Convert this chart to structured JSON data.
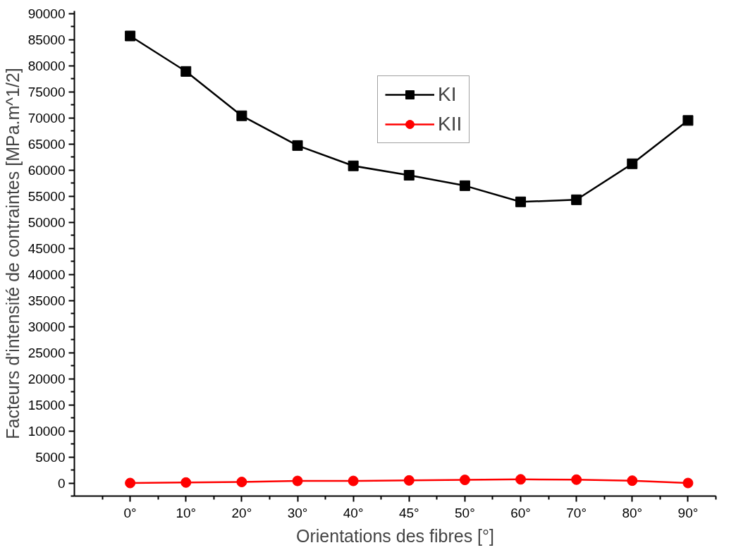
{
  "chart_data": {
    "type": "line",
    "xlabel": "Orientations des fibres [°]",
    "ylabel": "Facteurs d'intensité de contraintes [MPa.m^1/2]",
    "categories": [
      "0°",
      "10°",
      "20°",
      "30°",
      "40°",
      "45°",
      "50°",
      "60°",
      "70°",
      "80°",
      "90°"
    ],
    "series": [
      {
        "name": "KI",
        "color": "#000000",
        "marker": "square",
        "values": [
          85700,
          78900,
          70400,
          64700,
          60800,
          59000,
          57000,
          53900,
          54300,
          61200,
          69500
        ]
      },
      {
        "name": "KII",
        "color": "#ff0000",
        "marker": "circle",
        "values": [
          0,
          100,
          200,
          400,
          400,
          500,
          600,
          700,
          650,
          450,
          0
        ]
      }
    ],
    "ylim": [
      -2500,
      90500
    ],
    "yticks": [
      0,
      5000,
      10000,
      15000,
      20000,
      25000,
      30000,
      35000,
      40000,
      45000,
      50000,
      55000,
      60000,
      65000,
      70000,
      75000,
      80000,
      85000,
      90000
    ],
    "grid": false,
    "legend": "top",
    "line_style": "solid"
  }
}
